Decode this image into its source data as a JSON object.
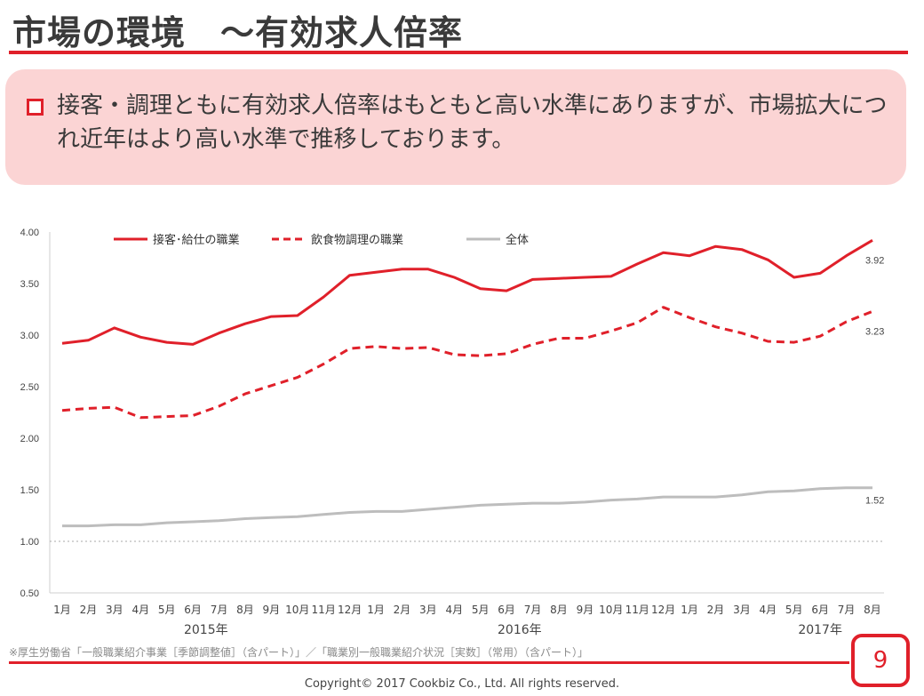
{
  "header": {
    "title": "市場の環境　～有効求人倍率"
  },
  "callout": {
    "text": "接客・調理ともに有効求人倍率はもともと高い水準にありますが、市場拡大につれ近年はより高い水準で推移しております。"
  },
  "chart_data": {
    "type": "line",
    "categories": [
      "1月",
      "2月",
      "3月",
      "4月",
      "5月",
      "6月",
      "7月",
      "8月",
      "9月",
      "10月",
      "11月",
      "12月",
      "1月",
      "2月",
      "3月",
      "4月",
      "5月",
      "6月",
      "7月",
      "8月",
      "9月",
      "10月",
      "11月",
      "12月",
      "1月",
      "2月",
      "3月",
      "4月",
      "5月",
      "6月",
      "7月",
      "8月"
    ],
    "year_labels": [
      {
        "label": "2015年",
        "center_index": 5.5
      },
      {
        "label": "2016年",
        "center_index": 17.5
      },
      {
        "label": "2017年",
        "center_index": 29
      }
    ],
    "ylim": [
      0.5,
      4.0
    ],
    "yticks": [
      "0.50",
      "1.00",
      "1.50",
      "2.00",
      "2.50",
      "3.00",
      "3.50",
      "4.00"
    ],
    "reference_line": 1.0,
    "legend_position": "top",
    "series": [
      {
        "name": "接客･給仕の職業",
        "style": "solid",
        "color": "#e0202a",
        "end_label": "3.92",
        "values": [
          2.92,
          2.95,
          3.07,
          2.98,
          2.93,
          2.91,
          3.02,
          3.11,
          3.18,
          3.19,
          3.37,
          3.58,
          3.61,
          3.64,
          3.64,
          3.56,
          3.45,
          3.43,
          3.54,
          3.55,
          3.56,
          3.57,
          3.69,
          3.8,
          3.77,
          3.86,
          3.83,
          3.73,
          3.56,
          3.6,
          3.77,
          3.92
        ]
      },
      {
        "name": "飲食物調理の職業",
        "style": "dashed",
        "color": "#e0202a",
        "end_label": "3.23",
        "values": [
          2.27,
          2.29,
          2.3,
          2.2,
          2.21,
          2.22,
          2.31,
          2.43,
          2.51,
          2.59,
          2.72,
          2.87,
          2.89,
          2.87,
          2.88,
          2.81,
          2.8,
          2.82,
          2.91,
          2.97,
          2.97,
          3.04,
          3.12,
          3.27,
          3.17,
          3.08,
          3.02,
          2.94,
          2.93,
          2.99,
          3.13,
          3.23
        ]
      },
      {
        "name": "全体",
        "style": "solid",
        "color": "#bdbdbd",
        "end_label": "1.52",
        "values": [
          1.15,
          1.15,
          1.16,
          1.16,
          1.18,
          1.19,
          1.2,
          1.22,
          1.23,
          1.24,
          1.26,
          1.28,
          1.29,
          1.29,
          1.31,
          1.33,
          1.35,
          1.36,
          1.37,
          1.37,
          1.38,
          1.4,
          1.41,
          1.43,
          1.43,
          1.43,
          1.45,
          1.48,
          1.49,
          1.51,
          1.52,
          1.52
        ]
      }
    ]
  },
  "footer": {
    "source": "※厚生労働省「一般職業紹介事業［季節調整値］（含パート）」／「職業別一般職業紹介状況［実数］（常用）（含パート）」",
    "page_number": "9",
    "copyright": "Copyright© 2017 Cookbiz Co., Ltd. All rights reserved."
  }
}
